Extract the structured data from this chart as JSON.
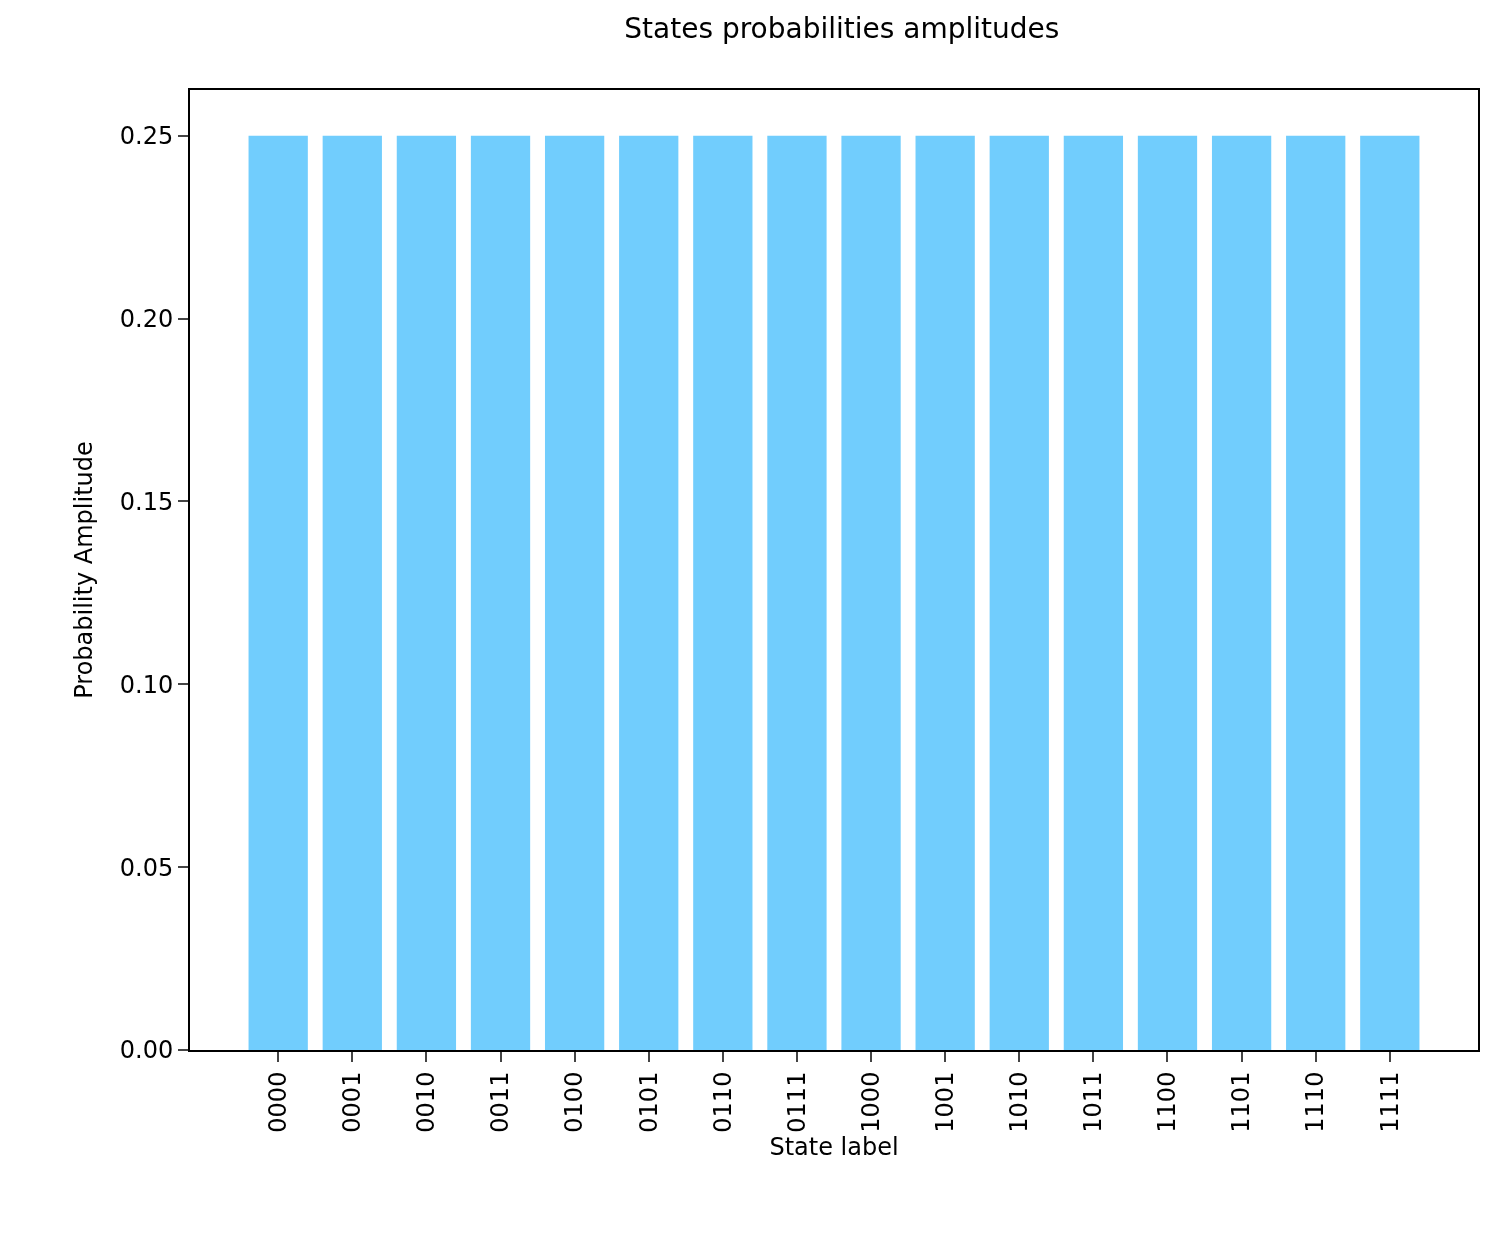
{
  "chart_data": {
    "type": "bar",
    "title": "States probabilities amplitudes",
    "xlabel": "State label",
    "ylabel": "Probability Amplitude",
    "categories": [
      "0000",
      "0001",
      "0010",
      "0011",
      "0100",
      "0101",
      "0110",
      "0111",
      "1000",
      "1001",
      "1010",
      "1011",
      "1100",
      "1101",
      "1110",
      "1111"
    ],
    "values": [
      0.25,
      0.25,
      0.25,
      0.25,
      0.25,
      0.25,
      0.25,
      0.25,
      0.25,
      0.25,
      0.25,
      0.25,
      0.25,
      0.25,
      0.25,
      0.25
    ],
    "color": "#71cdfd",
    "ylim": [
      0,
      0.2625
    ],
    "yticks": [
      {
        "value": 0,
        "label": "0.00"
      },
      {
        "value": 0.05,
        "label": "0.05"
      },
      {
        "value": 0.1,
        "label": "0.10"
      },
      {
        "value": 0.15,
        "label": "0.15"
      },
      {
        "value": 0.2,
        "label": "0.20"
      },
      {
        "value": 0.25,
        "label": "0.25"
      }
    ],
    "grid": false
  }
}
